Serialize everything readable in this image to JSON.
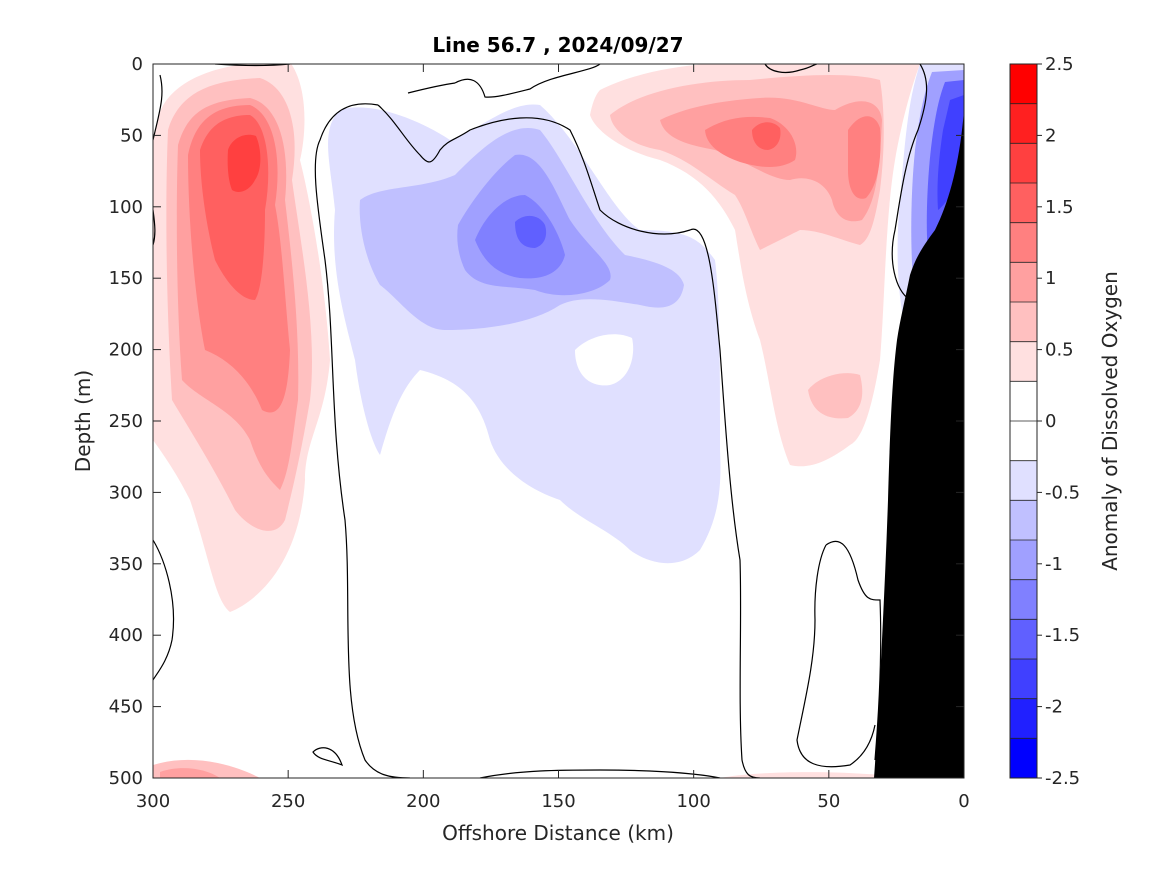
{
  "chart_data": {
    "type": "heatmap",
    "subtype": "filled-contour section",
    "title": "Line 56.7 , 2024/09/27",
    "xlabel": "Offshore Distance (km)",
    "ylabel": "Depth (m)",
    "xlim": [
      300,
      0
    ],
    "ylim": [
      0,
      500
    ],
    "x_reversed": true,
    "y_reversed": true,
    "x_ticks": [
      300,
      250,
      200,
      150,
      100,
      50,
      0
    ],
    "y_ticks": [
      0,
      50,
      100,
      150,
      200,
      250,
      300,
      350,
      400,
      450,
      500
    ],
    "colorbar": {
      "label": "Anomaly of Dissolved Oxygen",
      "range": [
        -2.5,
        2.5
      ],
      "step": 0.25,
      "ticks": [
        2.5,
        2,
        1.5,
        1,
        0.5,
        0,
        -0.5,
        -1,
        -1.5,
        -2,
        -2.5
      ],
      "tick_labels": [
        "2.5",
        "2",
        "1.5",
        "1",
        "0.5",
        "0",
        "-0.5",
        "-1",
        "-1.5",
        "-2",
        "-2.5"
      ],
      "colors": [
        "#ff0000",
        "#ff2020",
        "#ff4040",
        "#ff6060",
        "#ff8080",
        "#ffa0a0",
        "#ffc0c0",
        "#ffe0e0",
        "#ffffff",
        "#ffffff",
        "#e0e0ff",
        "#c0c0ff",
        "#a0a0ff",
        "#8080ff",
        "#6060ff",
        "#4040ff",
        "#2020ff",
        "#0000ff"
      ]
    },
    "features": [
      {
        "name": "warm anomaly west core",
        "distance_km": 265,
        "depth_m": 75,
        "peak": 1.5
      },
      {
        "name": "warm anomaly west deep",
        "distance_km": 255,
        "depth_m": 230,
        "peak": 1.0
      },
      {
        "name": "low oxygen anomaly mid core",
        "distance_km": 160,
        "depth_m": 115,
        "peak": -1.25
      },
      {
        "name": "warm anomaly nearshore",
        "distance_km": 75,
        "depth_m": 45,
        "peak": 1.25
      },
      {
        "name": "warm anomaly nearshore 2",
        "distance_km": 40,
        "depth_m": 80,
        "peak": 1.0
      },
      {
        "name": "low oxygen anomaly slope",
        "distance_km": 10,
        "depth_m": 80,
        "peak": -2.0
      }
    ],
    "bathymetry": "shelf/slope masked black near 0-35 km"
  }
}
